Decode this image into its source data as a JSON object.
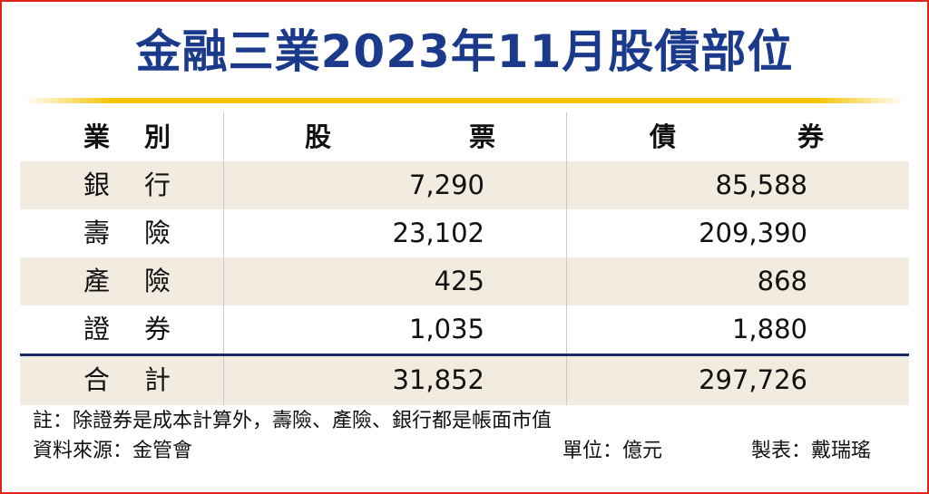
{
  "title": "金融三業2023年11月股債部位",
  "columns": {
    "category": [
      "業",
      "別"
    ],
    "stock": [
      "股",
      "票"
    ],
    "bond": [
      "債",
      "券"
    ]
  },
  "rows": [
    {
      "category": [
        "銀",
        "行"
      ],
      "stock": "7,290",
      "bond": "85,588"
    },
    {
      "category": [
        "壽",
        "險"
      ],
      "stock": "23,102",
      "bond": "209,390"
    },
    {
      "category": [
        "產",
        "險"
      ],
      "stock": "425",
      "bond": "868"
    },
    {
      "category": [
        "證",
        "券"
      ],
      "stock": "1,035",
      "bond": "1,880"
    }
  ],
  "total": {
    "category": [
      "合",
      "計"
    ],
    "stock": "31,852",
    "bond": "297,726"
  },
  "note": "註：除證券是成本計算外，壽險、產險、銀行都是帳面市值",
  "source": "資料來源：金管會",
  "unit": "單位：億元",
  "author": "製表：戴瑞瑤",
  "colors": {
    "title": "#1b3a8c",
    "accent_line": "#f5c400",
    "row_shade": "#f2ece0",
    "border": "#e2231a"
  },
  "chart_data": {
    "type": "table",
    "title": "金融三業2023年11月股債部位",
    "unit": "單位：億元",
    "columns": [
      "業別",
      "股票",
      "債券"
    ],
    "categories": [
      "銀行",
      "壽險",
      "產險",
      "證券",
      "合計"
    ],
    "series": [
      {
        "name": "股票",
        "values": [
          7290,
          23102,
          425,
          1035,
          31852
        ]
      },
      {
        "name": "債券",
        "values": [
          85588,
          209390,
          868,
          1880,
          297726
        ]
      }
    ]
  }
}
